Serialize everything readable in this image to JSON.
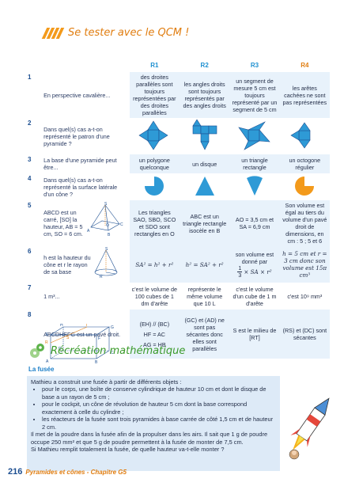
{
  "header": {
    "title": "Se tester avec le QCM !"
  },
  "columns": [
    "R1",
    "R2",
    "R3",
    "R4"
  ],
  "rows": [
    {
      "num": "1",
      "question": "En perspective cavalière...",
      "answers": [
        "des droites parallèles sont toujours représentées par des droites parallèles",
        "les angles droits sont toujours représentés par des angles droits",
        "un segment de mesure 5 cm est toujours représenté par un segment de 5 cm",
        "les arêtes cachées ne sont pas représentées"
      ]
    },
    {
      "num": "2",
      "question": "Dans quel(s) cas a-t-on représenté le patron d'une pyramide ?",
      "answers": [
        "",
        "",
        "",
        ""
      ]
    },
    {
      "num": "3",
      "question": "La base d'une pyramide peut être...",
      "answers": [
        "un polygone quelconque",
        "un disque",
        "un triangle rectangle",
        "un octogone régulier"
      ]
    },
    {
      "num": "4",
      "question": "Dans quel(s) cas a-t-on représenté la surface latérale d'un cône ?",
      "answers": [
        "",
        "",
        "",
        ""
      ]
    },
    {
      "num": "5",
      "question": "ABCD est un carré, [SO] la hauteur, AB = 5 cm, SO = 6 cm.",
      "answers": [
        "Les triangles SAO, SBO, SCO et SDO sont rectangles en O",
        "ABC est un triangle rectangle isocèle en B",
        "AO = 3,5 cm et SA = 6,9 cm",
        "Son volume est égal au tiers du volume d'un pavé droit de dimensions, en cm : 5 ; 5 et 6"
      ]
    },
    {
      "num": "6",
      "question": "h est la hauteur du cône et r le rayon de sa base",
      "answers": [
        "SA² = h² + r²",
        "h² = SA² + r²",
        "son volume est donné par",
        "h = 5 cm et r = 3 cm donc son volume est 15π cm³"
      ],
      "r3_formula": [
        "1",
        "3",
        "× SA × r²"
      ]
    },
    {
      "num": "7",
      "question": "1 m³...",
      "answers": [
        "c'est le volume de 100 cubes de 1 dm d'arête",
        "représente le même volume que 10 L",
        "c'est le volume d'un cube de 1 m d'arête",
        "c'est 10⁹ mm³"
      ]
    },
    {
      "num": "8",
      "question": "ABCDHEFG est un pavé droit.",
      "answers": [
        "(EH) // (BC)",
        "(GC) et (AD) ne sont pas sécantes donc elles sont parallèles",
        "S est le milieu de [RT]",
        "(RS) et (DC) sont sécantes"
      ],
      "r1_extra": [
        "HF = AC",
        "AG = HB"
      ]
    }
  ],
  "figure_labels": {
    "pyramid": [
      "S",
      "O",
      "A",
      "B",
      "C"
    ],
    "cone": [
      "S",
      "R"
    ],
    "pave": [
      "H",
      "T",
      "G",
      "E",
      "S",
      "F",
      "R",
      "D",
      "C",
      "A",
      "B"
    ]
  },
  "recreation": {
    "title": "Récréation mathématique",
    "subtitle": "La fusée"
  },
  "problem": {
    "intro": "Mathieu a construit une fusée à partir de différents objets :",
    "items": [
      "pour le corps, une boîte de conserve cylindrique de hauteur 10 cm et dont le disque de base a un rayon de 5 cm ;",
      "pour le cockpit, un cône de révolution de hauteur 5 cm dont la base correspond exactement à celle du cylindre ;",
      "les réacteurs de la fusée sont trois pyramides à base carrée de côté 1,5 cm et de hauteur 2 cm."
    ],
    "text": "Il met de la poudre dans la fusée afin de la propulser dans les airs. Il sait que 1 g de poudre occupe 250 mm² et que 5 g de poudre permettent à la fusée de monter de 7,5 cm.",
    "question": "Si Mathieu remplit totalement la fusée, de quelle hauteur va-t-elle monter ?"
  },
  "footer": {
    "page_number": "216",
    "chapter": "Pyramides et cônes - Chapitre G5"
  },
  "colors": {
    "accent_orange": "#e07d10",
    "accent_blue": "#1c8fd0",
    "accent_green": "#3a9a2a",
    "band": "#e8f2fb"
  }
}
